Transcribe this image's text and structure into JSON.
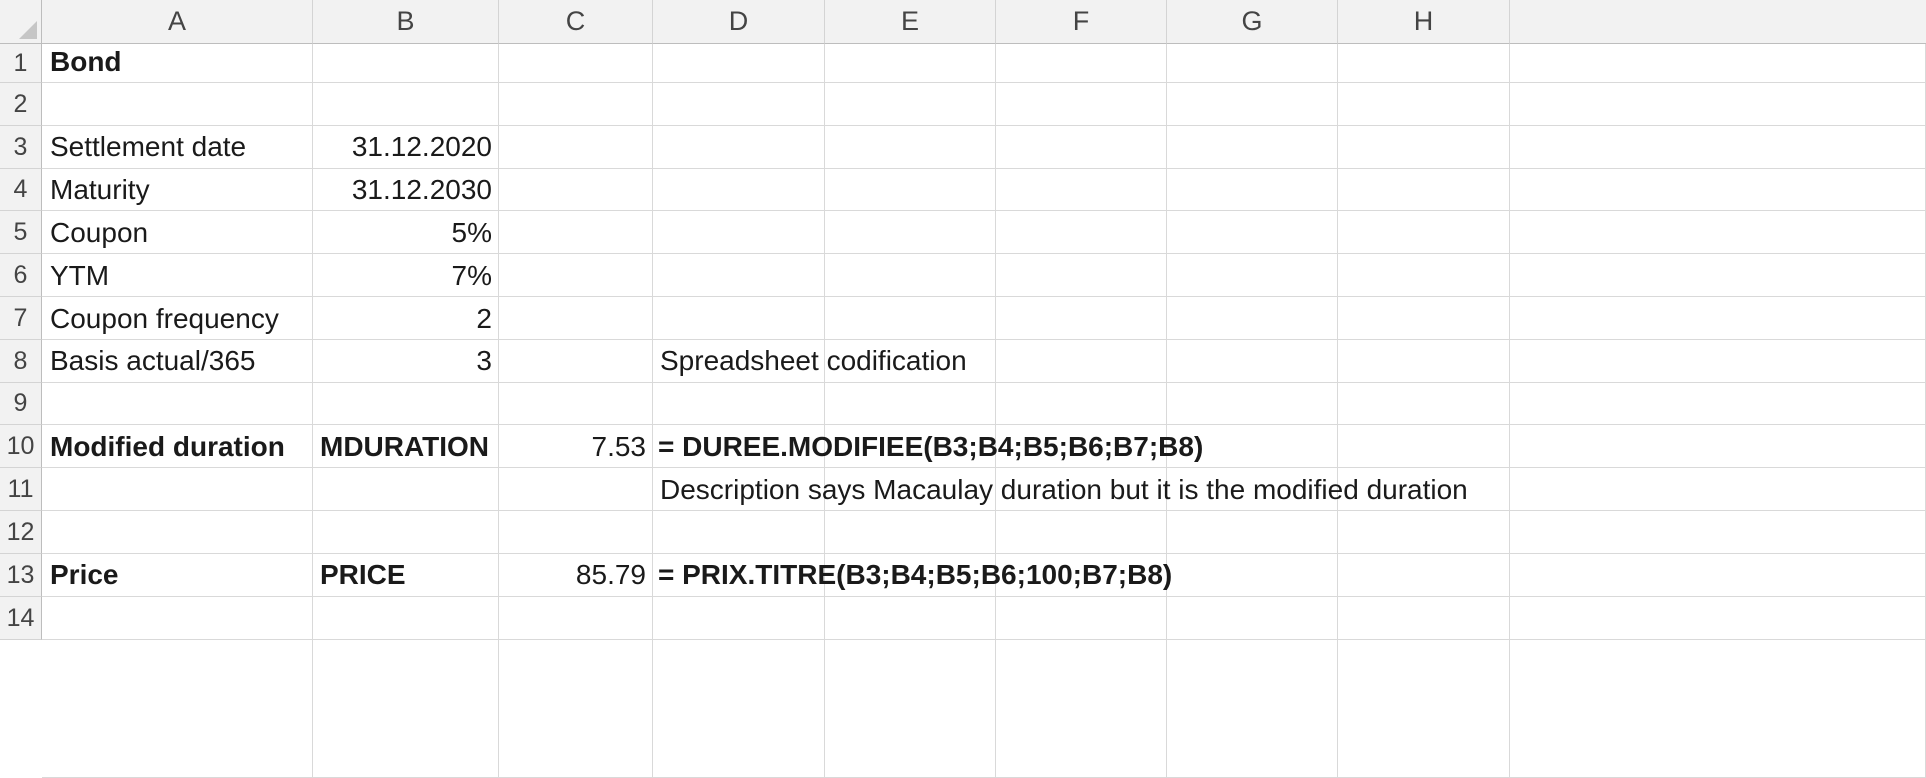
{
  "columns": [
    "A",
    "B",
    "C",
    "D",
    "E",
    "F",
    "G",
    "H"
  ],
  "rows": [
    "1",
    "2",
    "3",
    "4",
    "5",
    "6",
    "7",
    "8",
    "9",
    "10",
    "11",
    "12",
    "13",
    "14"
  ],
  "cells": {
    "A1": "Bond",
    "A3": "Settlement date",
    "B3": "31.12.2020",
    "A4": "Maturity",
    "B4": "31.12.2030",
    "A5": "Coupon",
    "B5": "5%",
    "A6": "YTM",
    "B6": "7%",
    "A7": "Coupon frequency",
    "B7": "2",
    "A8": "Basis actual/365",
    "B8": "3",
    "D8": "Spreadsheet codification",
    "A10": "Modified duration",
    "B10": "MDURATION",
    "C10": "7.53",
    "D10": "= DUREE.MODIFIEE(B3;B4;B5;B6;B7;B8)",
    "D11": "Description says Macaulay duration but it is the modified duration",
    "A13": "Price",
    "B13": "PRICE",
    "C13": "85.79",
    "D13": "= PRIX.TITRE(B3;B4;B5;B6;100;B7;B8)"
  }
}
